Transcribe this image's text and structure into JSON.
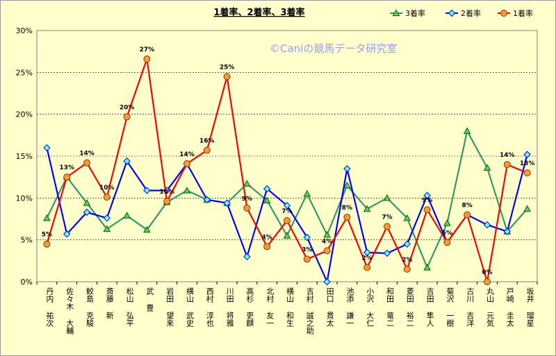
{
  "chart_data": {
    "type": "line",
    "title": "1着率、2着率、3着率",
    "watermark": "©Caniの競馬データ研究室",
    "ylim": [
      0,
      30
    ],
    "yticks": [
      "0%",
      "5%",
      "10%",
      "15%",
      "20%",
      "25%",
      "30%"
    ],
    "ytick_values": [
      0,
      5,
      10,
      15,
      20,
      25,
      30
    ],
    "grid": true,
    "legend_position": "top-right",
    "categories": [
      "丹内 祐次",
      "佐々木 大輔",
      "鮫島 克駿",
      "斎藤 新",
      "松山 弘平",
      "武 豊",
      "岩田 望来",
      "横山 武史",
      "西村 淳也",
      "川田 将雅",
      "高杉 吏麒",
      "北村 友一",
      "横山 和生",
      "吉村 誠之助",
      "田口 貫太",
      "池添 謙一",
      "小沢 大仁",
      "和田 竜二",
      "菱田 裕二",
      "吉田 隼人",
      "菊沢 一樹",
      "古川 吉洋",
      "丸山 元気",
      "戸崎 圭太",
      "坂井 瑠星"
    ],
    "series": [
      {
        "name": "3着率",
        "color": "#339966",
        "marker": "triangle",
        "marker_fill": "#66cc66",
        "values": [
          7.6,
          12.5,
          9.4,
          6.3,
          7.9,
          6.2,
          9.5,
          10.9,
          9.8,
          9.4,
          11.7,
          9.7,
          5.5,
          10.5,
          5.6,
          11.5,
          8.7,
          10.0,
          7.6,
          1.7,
          7.0,
          18.0,
          13.6,
          6.0,
          8.7
        ]
      },
      {
        "name": "2着率",
        "color": "#0000ff",
        "marker": "diamond",
        "marker_fill": "#66ffff",
        "values": [
          16.0,
          5.7,
          8.3,
          7.6,
          14.4,
          10.9,
          10.9,
          14.1,
          9.8,
          9.4,
          3.0,
          11.1,
          9.1,
          5.3,
          0.0,
          13.5,
          3.5,
          3.4,
          4.5,
          10.3,
          4.7,
          8.0,
          6.8,
          6.0,
          15.2
        ]
      },
      {
        "name": "1着率",
        "color": "#ff0000",
        "marker": "circle",
        "marker_fill": "#ff9933",
        "values": [
          4.5,
          12.5,
          14.2,
          10.1,
          19.7,
          26.6,
          9.6,
          14.1,
          15.7,
          24.5,
          8.8,
          4.2,
          7.3,
          2.7,
          3.7,
          7.7,
          1.7,
          6.6,
          1.5,
          8.6,
          4.7,
          8.0,
          0.0,
          14.0,
          13.0
        ]
      }
    ],
    "data_labels": [
      "5%",
      "13%",
      "14%",
      "10%",
      "20%",
      "27%",
      "10%",
      "14%",
      "16%",
      "25%",
      "9%",
      "4%",
      "7%",
      "3%",
      "4%",
      "8%",
      "2%",
      "7%",
      "2%",
      "9%",
      "5%",
      "8%",
      "0%",
      "14%",
      "13%"
    ]
  }
}
